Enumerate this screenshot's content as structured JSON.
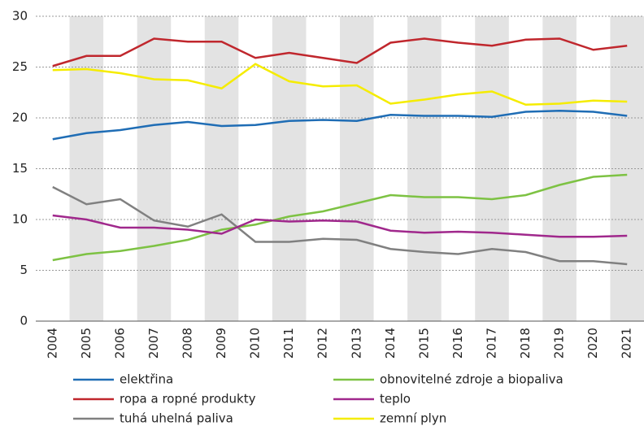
{
  "chart_data": {
    "type": "line",
    "categories": [
      "2004",
      "2005",
      "2006",
      "2007",
      "2008",
      "2009",
      "2010",
      "2011",
      "2012",
      "2013",
      "2014",
      "2015",
      "2016",
      "2017",
      "2018",
      "2019",
      "2020",
      "2021"
    ],
    "series": [
      {
        "name": "elektřina",
        "color": "#1f6db5",
        "values": [
          17.9,
          18.5,
          18.8,
          19.3,
          19.6,
          19.2,
          19.3,
          19.7,
          19.8,
          19.7,
          20.3,
          20.2,
          20.2,
          20.1,
          20.6,
          20.7,
          20.6,
          20.2
        ]
      },
      {
        "name": "ropa a ropné produkty",
        "color": "#c0272d",
        "values": [
          25.1,
          26.1,
          26.1,
          27.8,
          27.5,
          27.5,
          25.9,
          26.4,
          25.9,
          25.4,
          27.4,
          27.8,
          27.4,
          27.1,
          27.7,
          27.8,
          26.7,
          27.1
        ]
      },
      {
        "name": "tuhá uhelná paliva",
        "color": "#808080",
        "values": [
          13.2,
          11.5,
          12.0,
          9.9,
          9.3,
          10.5,
          7.8,
          7.8,
          8.1,
          8.0,
          7.1,
          6.8,
          6.6,
          7.1,
          6.8,
          5.9,
          5.9,
          5.6
        ]
      },
      {
        "name": "obnovitelné zdroje a biopaliva",
        "color": "#7dc243",
        "values": [
          6.0,
          6.6,
          6.9,
          7.4,
          8.0,
          9.0,
          9.5,
          10.3,
          10.8,
          11.6,
          12.4,
          12.2,
          12.2,
          12.0,
          12.4,
          13.4,
          14.2,
          14.4
        ]
      },
      {
        "name": "teplo",
        "color": "#a0288c",
        "values": [
          10.4,
          10.0,
          9.2,
          9.2,
          9.0,
          8.6,
          10.0,
          9.8,
          9.9,
          9.8,
          8.9,
          8.7,
          8.8,
          8.7,
          8.5,
          8.3,
          8.3,
          8.4
        ]
      },
      {
        "name": "zemní plyn",
        "color": "#f5ec00",
        "values": [
          24.7,
          24.8,
          24.4,
          23.8,
          23.7,
          22.9,
          25.3,
          23.6,
          23.1,
          23.2,
          21.4,
          21.8,
          22.3,
          22.6,
          21.3,
          21.4,
          21.7,
          21.6
        ]
      }
    ],
    "ylim": [
      0,
      30
    ],
    "yticks": [
      0,
      5,
      10,
      15,
      20,
      25,
      30
    ],
    "grid": true
  }
}
